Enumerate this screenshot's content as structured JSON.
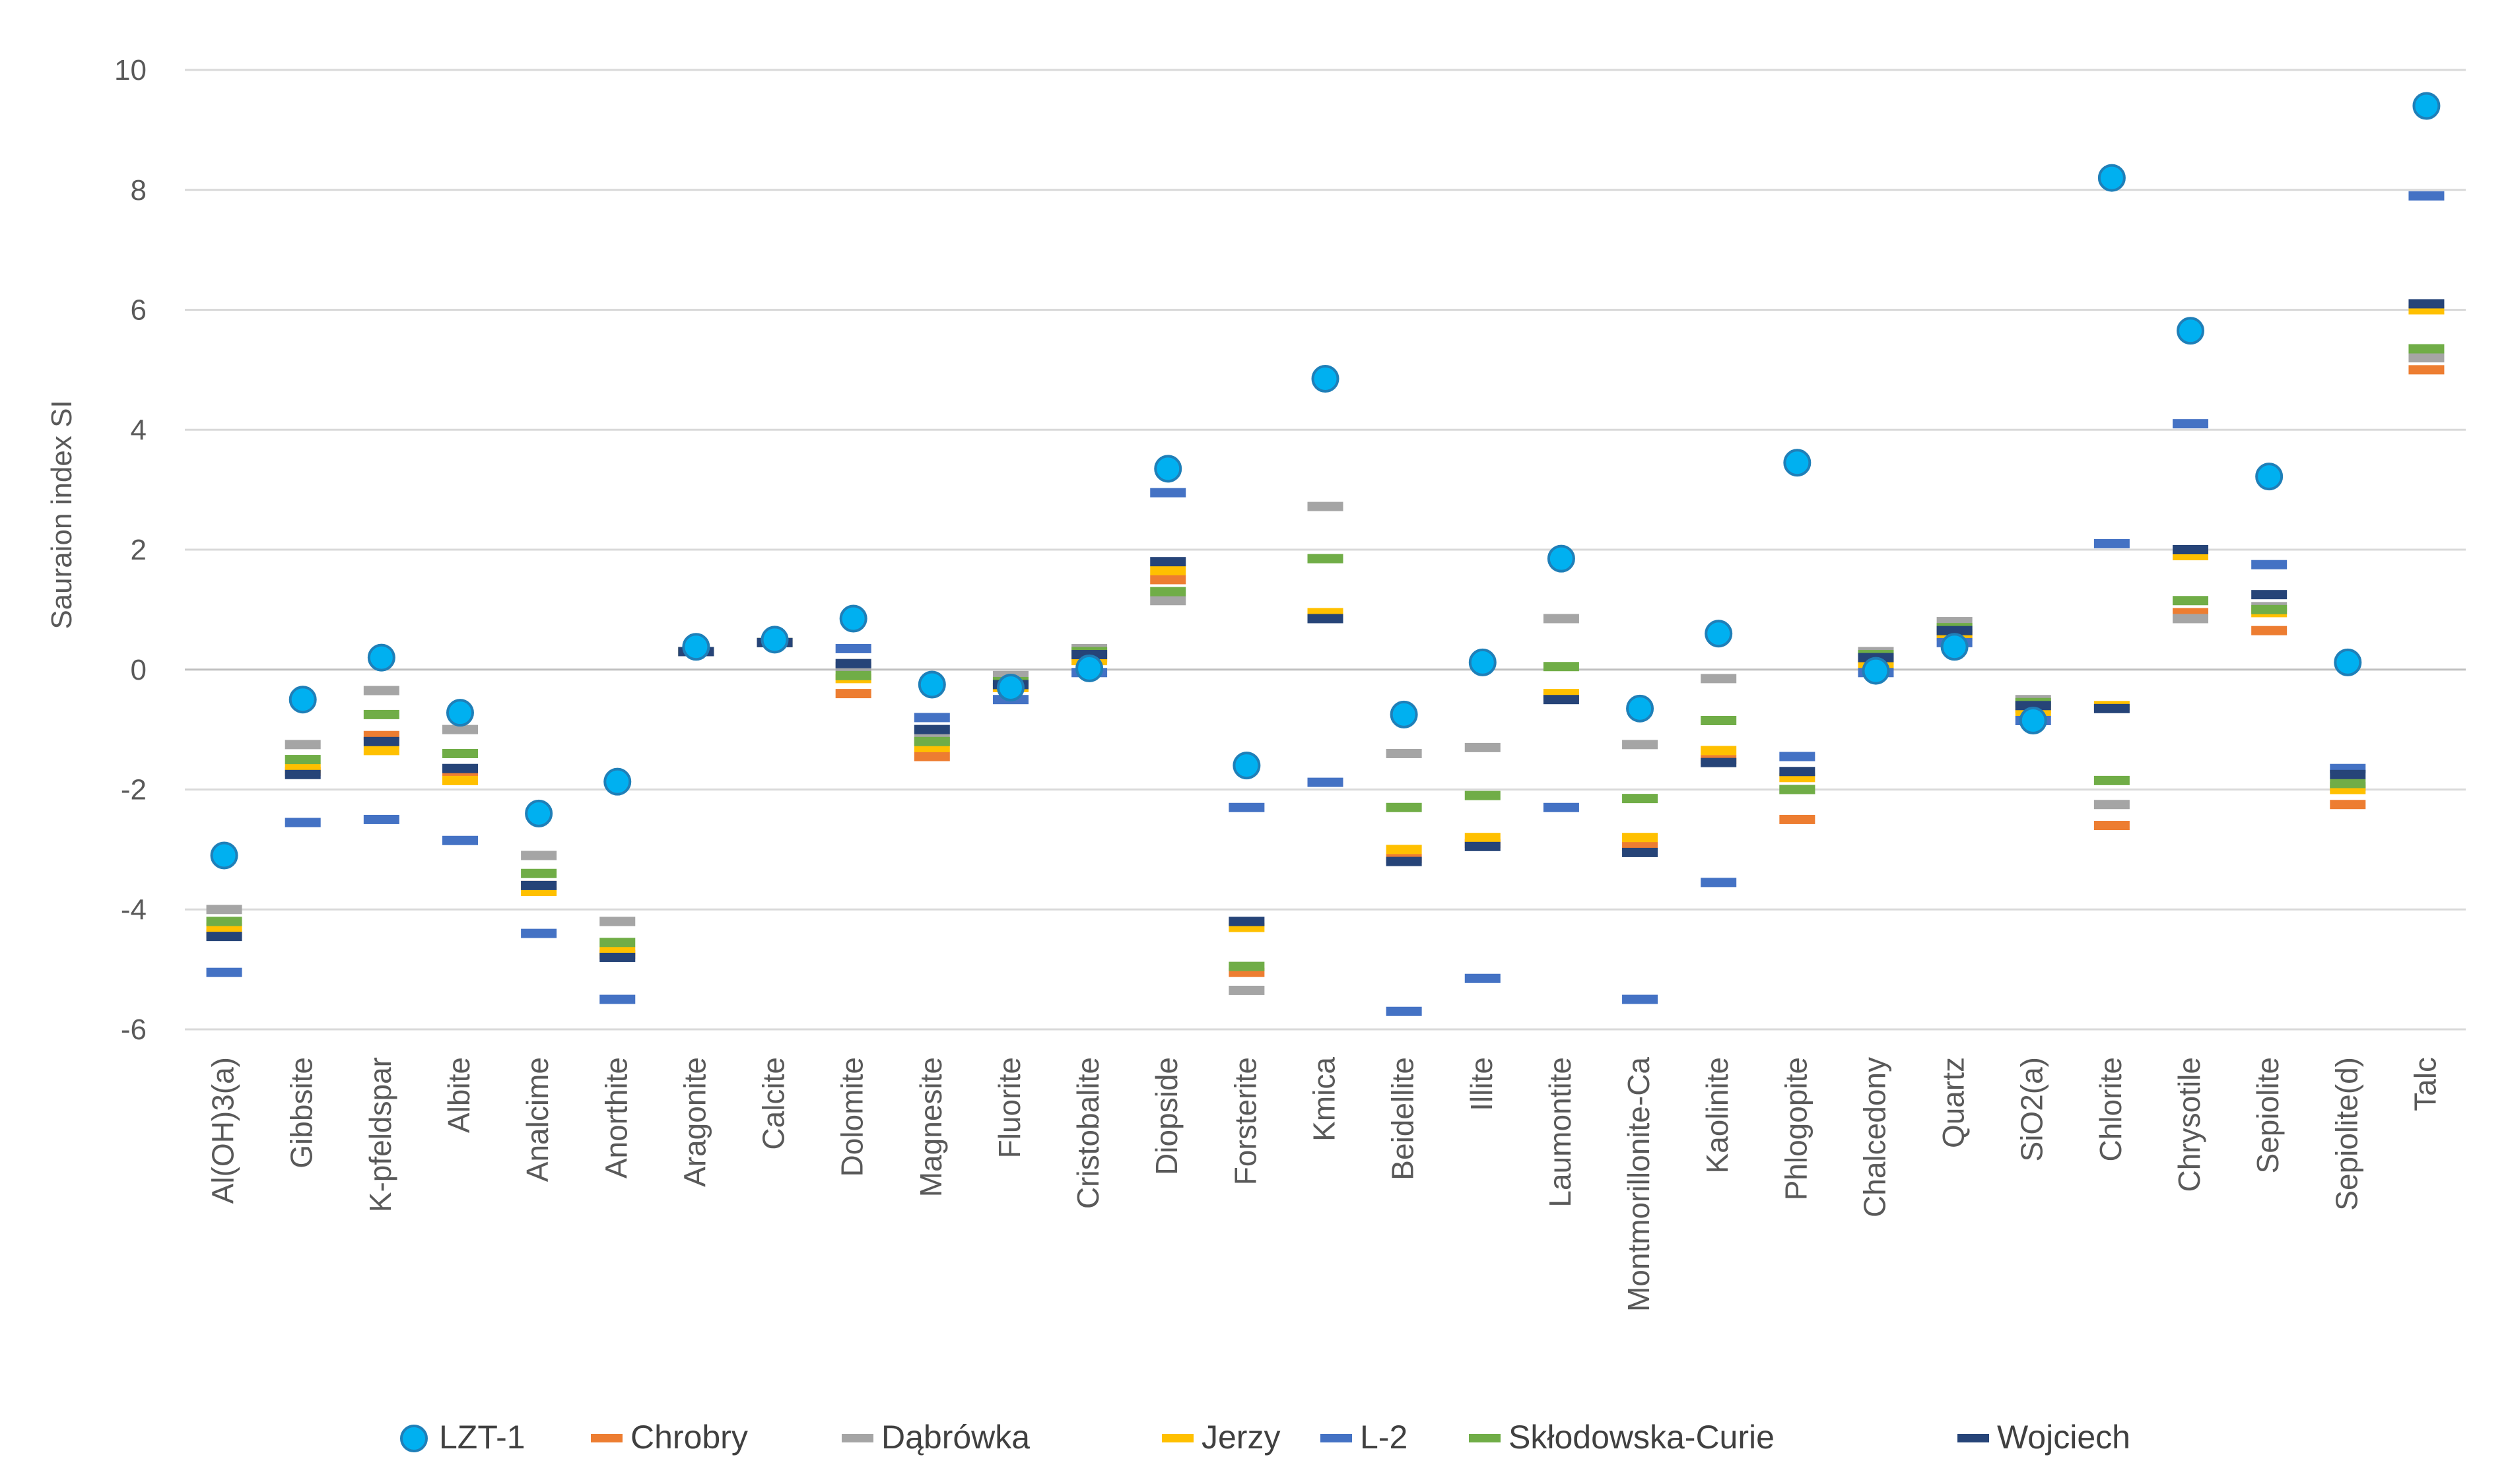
{
  "chart_data": {
    "type": "scatter",
    "title": "",
    "xlabel": "",
    "ylabel": "Sauraion index SI",
    "ylim": [
      -6,
      10
    ],
    "yticks": [
      -6,
      -4,
      -2,
      0,
      2,
      4,
      6,
      8,
      10
    ],
    "ytick_labels": [
      "-6",
      "-4",
      "-2",
      "0",
      "2",
      "4",
      "6",
      "8",
      "10"
    ],
    "grid": true,
    "legend_position": "bottom",
    "categories": [
      "Al(OH)3(a)",
      "Gibbsite",
      "K-pfeldspar",
      "Albite",
      "Analcime",
      "Anorthite",
      "Aragonite",
      "Calcite",
      "Dolomite",
      "Magnesite",
      "Fluorite",
      "Cristobalite",
      "Diopside",
      "Forsterite",
      "Kmica",
      "Beidellite",
      "Illite",
      "Laumontite",
      "Montmorillonite-Ca",
      "Kaolinite",
      "Phlogopite",
      "Chalcedony",
      "Quartz",
      "SiO2(a)",
      "Chlorite",
      "Chrysotile",
      "Sepiolite",
      "Sepiolite(d)",
      "Talc"
    ],
    "series": [
      {
        "name": "LZT-1",
        "marker": "circle",
        "color": "#00B0F0",
        "values": [
          -3.1,
          -0.5,
          0.2,
          -0.72,
          -2.4,
          -1.87,
          0.38,
          0.5,
          0.85,
          -0.25,
          -0.3,
          0.02,
          3.35,
          -1.6,
          4.85,
          -0.75,
          0.12,
          1.85,
          -0.65,
          0.6,
          3.45,
          -0.02,
          0.38,
          -0.85,
          8.2,
          5.65,
          3.22,
          0.12,
          9.4
        ]
      },
      {
        "name": "Chrobry",
        "marker": "dash",
        "color": "#ED7D31",
        "values": [
          -4.4,
          -1.7,
          -1.1,
          -1.75,
          -3.6,
          -4.75,
          0.3,
          0.45,
          -0.4,
          -1.45,
          -0.3,
          0.2,
          1.5,
          -5.05,
          0.9,
          -3.15,
          -2.9,
          -0.45,
          -2.95,
          -1.5,
          -2.5,
          0.15,
          0.6,
          -0.65,
          -2.6,
          0.95,
          0.65,
          -2.25,
          5.0
        ]
      },
      {
        "name": "Dąbrówka",
        "marker": "dash",
        "color": "#A5A5A5",
        "values": [
          -4.0,
          -1.25,
          -0.35,
          -1.0,
          -3.1,
          -4.2,
          0.3,
          0.45,
          0.05,
          -1.15,
          -0.1,
          0.35,
          1.15,
          -5.35,
          2.72,
          -1.4,
          -1.3,
          0.85,
          -1.25,
          -0.15,
          -2.0,
          0.3,
          0.8,
          -0.5,
          -2.25,
          0.85,
          1.05,
          -1.95,
          5.2
        ]
      },
      {
        "name": "Jerzy",
        "marker": "dash",
        "color": "#FFC000",
        "values": [
          -4.3,
          -1.65,
          -1.35,
          -1.85,
          -3.7,
          -4.7,
          0.3,
          0.45,
          -0.15,
          -1.3,
          -0.3,
          0.15,
          1.65,
          -4.3,
          0.95,
          -3.0,
          -2.8,
          -0.4,
          -2.8,
          -1.35,
          -1.8,
          0.1,
          0.55,
          -0.7,
          -0.6,
          1.9,
          0.95,
          -2.0,
          6.0
        ]
      },
      {
        "name": "L-2",
        "marker": "dash",
        "color": "#4472C4",
        "values": [
          -5.05,
          -2.55,
          -2.5,
          -2.85,
          -4.4,
          -5.5,
          0.3,
          0.45,
          0.35,
          -0.8,
          -0.5,
          -0.05,
          2.95,
          -2.3,
          -1.88,
          -5.7,
          -5.15,
          -2.3,
          -5.5,
          -3.55,
          -1.45,
          -0.05,
          0.45,
          -0.85,
          2.1,
          4.1,
          1.75,
          -1.65,
          7.9
        ]
      },
      {
        "name": "Skłodowska-Curie",
        "marker": "dash",
        "color": "#70AD47",
        "values": [
          -4.2,
          -1.5,
          -0.75,
          -1.4,
          -3.4,
          -4.55,
          0.3,
          0.45,
          -0.1,
          -1.2,
          -0.2,
          0.3,
          1.3,
          -4.95,
          1.85,
          -2.3,
          -2.1,
          0.05,
          -2.15,
          -0.85,
          -2.0,
          0.25,
          0.7,
          -0.55,
          -1.85,
          1.15,
          1.0,
          -1.9,
          5.35
        ]
      },
      {
        "name": "Wojciech",
        "marker": "dash",
        "color": "#264478",
        "values": [
          -4.45,
          -1.75,
          -1.2,
          -1.65,
          -3.6,
          -4.8,
          0.3,
          0.45,
          0.1,
          -1.0,
          -0.25,
          0.25,
          1.8,
          -4.2,
          0.85,
          -3.2,
          -2.95,
          -0.5,
          -3.05,
          -1.55,
          -1.7,
          0.2,
          0.65,
          -0.6,
          -0.65,
          2.0,
          1.25,
          -1.75,
          6.1
        ]
      }
    ]
  }
}
